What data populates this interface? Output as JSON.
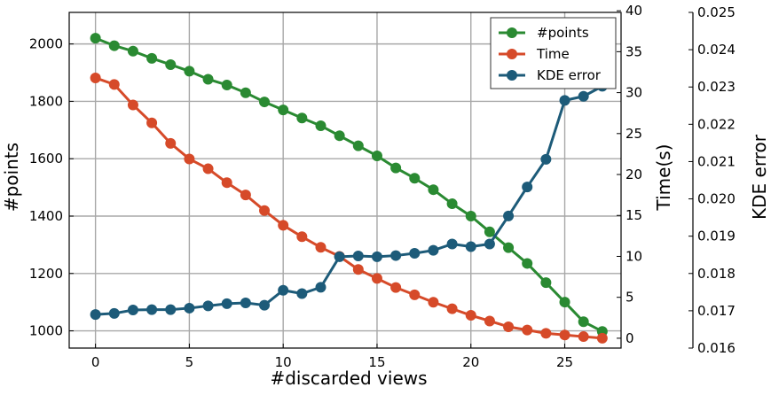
{
  "chart_data": {
    "type": "line",
    "xlabel": "#discarded views",
    "x_ticks": [
      "0",
      "5",
      "10",
      "15",
      "20",
      "25"
    ],
    "xlim": [
      -1.4,
      28
    ],
    "x": [
      0,
      1,
      2,
      3,
      4,
      5,
      6,
      7,
      8,
      9,
      10,
      11,
      12,
      13,
      14,
      15,
      16,
      17,
      18,
      19,
      20,
      21,
      22,
      23,
      24,
      25,
      26,
      27
    ],
    "grid": true,
    "legend_position": "top-right",
    "axes": {
      "left": {
        "label": "#points",
        "ylim": [
          940,
          2110
        ],
        "ticks": [
          "1000",
          "1200",
          "1400",
          "1600",
          "1800",
          "2000"
        ]
      },
      "right1": {
        "label": "Time(s)",
        "ylim": [
          -1.2,
          39.8
        ],
        "ticks": [
          "0",
          "5",
          "10",
          "15",
          "20",
          "25",
          "30",
          "35",
          "40"
        ]
      },
      "right2": {
        "label": "KDE error",
        "ylim": [
          0.016,
          0.025
        ],
        "ticks": [
          "0.016",
          "0.017",
          "0.018",
          "0.019",
          "0.020",
          "0.021",
          "0.022",
          "0.023",
          "0.024",
          "0.025"
        ]
      }
    },
    "series": [
      {
        "name": "#points",
        "axis": "left",
        "color": "#2a8a32",
        "values": [
          2020,
          1994,
          1975,
          1950,
          1928,
          1905,
          1877,
          1857,
          1830,
          1798,
          1770,
          1742,
          1715,
          1680,
          1645,
          1610,
          1568,
          1532,
          1492,
          1443,
          1400,
          1345,
          1290,
          1235,
          1168,
          1100,
          1032,
          998
        ]
      },
      {
        "name": "Time",
        "axis": "right1",
        "color": "#d64a29",
        "values": [
          31.8,
          31.0,
          28.5,
          26.3,
          23.8,
          21.9,
          20.7,
          19.0,
          17.5,
          15.6,
          13.8,
          12.4,
          11.1,
          10.0,
          8.4,
          7.3,
          6.2,
          5.3,
          4.4,
          3.6,
          2.8,
          2.1,
          1.4,
          1.0,
          0.6,
          0.4,
          0.2,
          0.0
        ]
      },
      {
        "name": "KDE error",
        "axis": "right2",
        "color": "#1d5b79",
        "values": [
          0.0169,
          0.01693,
          0.01702,
          0.01703,
          0.01703,
          0.01707,
          0.01713,
          0.01719,
          0.01721,
          0.01715,
          0.01755,
          0.01746,
          0.01763,
          0.01845,
          0.01847,
          0.01845,
          0.01848,
          0.01854,
          0.01862,
          0.01879,
          0.01872,
          0.01879,
          0.01954,
          0.02032,
          0.02106,
          0.02264,
          0.02275,
          0.02302
        ]
      }
    ]
  }
}
